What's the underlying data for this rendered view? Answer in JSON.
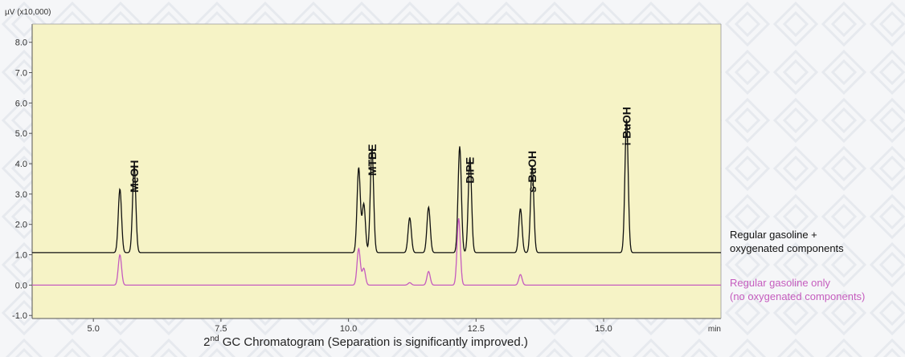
{
  "chart_data": {
    "type": "line",
    "y_unit": "µV (x10,000)",
    "x_unit": "min",
    "xlim": [
      3.8,
      17.3
    ],
    "ylim": [
      -1.1,
      8.6
    ],
    "x_ticks": [
      5.0,
      7.5,
      10.0,
      12.5,
      15.0
    ],
    "x_tick_labels": [
      "5.0",
      "7.5",
      "10.0",
      "12.5",
      "15.0"
    ],
    "y_ticks": [
      -1.0,
      0.0,
      1.0,
      2.0,
      3.0,
      4.0,
      5.0,
      6.0,
      7.0,
      8.0
    ],
    "y_tick_labels": [
      "-1.0",
      "0.0",
      "1.0",
      "2.0",
      "3.0",
      "4.0",
      "5.0",
      "6.0",
      "7.0",
      "8.0"
    ],
    "grid": false,
    "plot_background": "#f6f3c6",
    "series": [
      {
        "name": "Regular gasoline + oxygenated components",
        "legend_lines": [
          "Regular gasoline +",
          "oxygenated components"
        ],
        "color": "#111111",
        "baseline": 1.07,
        "peaks": [
          {
            "rt": 5.52,
            "height": 2.1
          },
          {
            "rt": 5.8,
            "height": 2.85
          },
          {
            "rt": 10.2,
            "height": 2.8
          },
          {
            "rt": 10.3,
            "height": 1.6
          },
          {
            "rt": 10.46,
            "height": 3.45
          },
          {
            "rt": 11.2,
            "height": 1.15
          },
          {
            "rt": 11.57,
            "height": 1.5
          },
          {
            "rt": 12.18,
            "height": 3.5
          },
          {
            "rt": 12.38,
            "height": 3.15
          },
          {
            "rt": 13.37,
            "height": 1.45
          },
          {
            "rt": 13.6,
            "height": 2.85
          },
          {
            "rt": 15.45,
            "height": 4.4
          }
        ]
      },
      {
        "name": "Regular gasoline only (no oxygenated components)",
        "legend_lines": [
          "Regular gasoline only",
          "(no oxygenated components)"
        ],
        "color": "#c55cbe",
        "baseline": 0.0,
        "peaks": [
          {
            "rt": 5.52,
            "height": 1.0
          },
          {
            "rt": 10.2,
            "height": 1.2
          },
          {
            "rt": 10.3,
            "height": 0.55
          },
          {
            "rt": 11.2,
            "height": 0.08
          },
          {
            "rt": 11.57,
            "height": 0.45
          },
          {
            "rt": 12.16,
            "height": 2.2
          },
          {
            "rt": 13.37,
            "height": 0.35
          }
        ]
      }
    ],
    "annotations": [
      {
        "text": "MeOH",
        "x": 5.8,
        "y": 3.05
      },
      {
        "text": "MTBE",
        "x": 10.46,
        "y": 3.6
      },
      {
        "text": "DIPE",
        "x": 12.38,
        "y": 3.35
      },
      {
        "text": "s-BuOH",
        "x": 13.6,
        "y": 3.05
      },
      {
        "text": "i-BuOH",
        "x": 15.45,
        "y": 4.6
      }
    ],
    "caption_prefix": "2",
    "caption_sup": "nd",
    "caption_rest": " GC Chromatogram (Separation is significantly improved.)"
  }
}
